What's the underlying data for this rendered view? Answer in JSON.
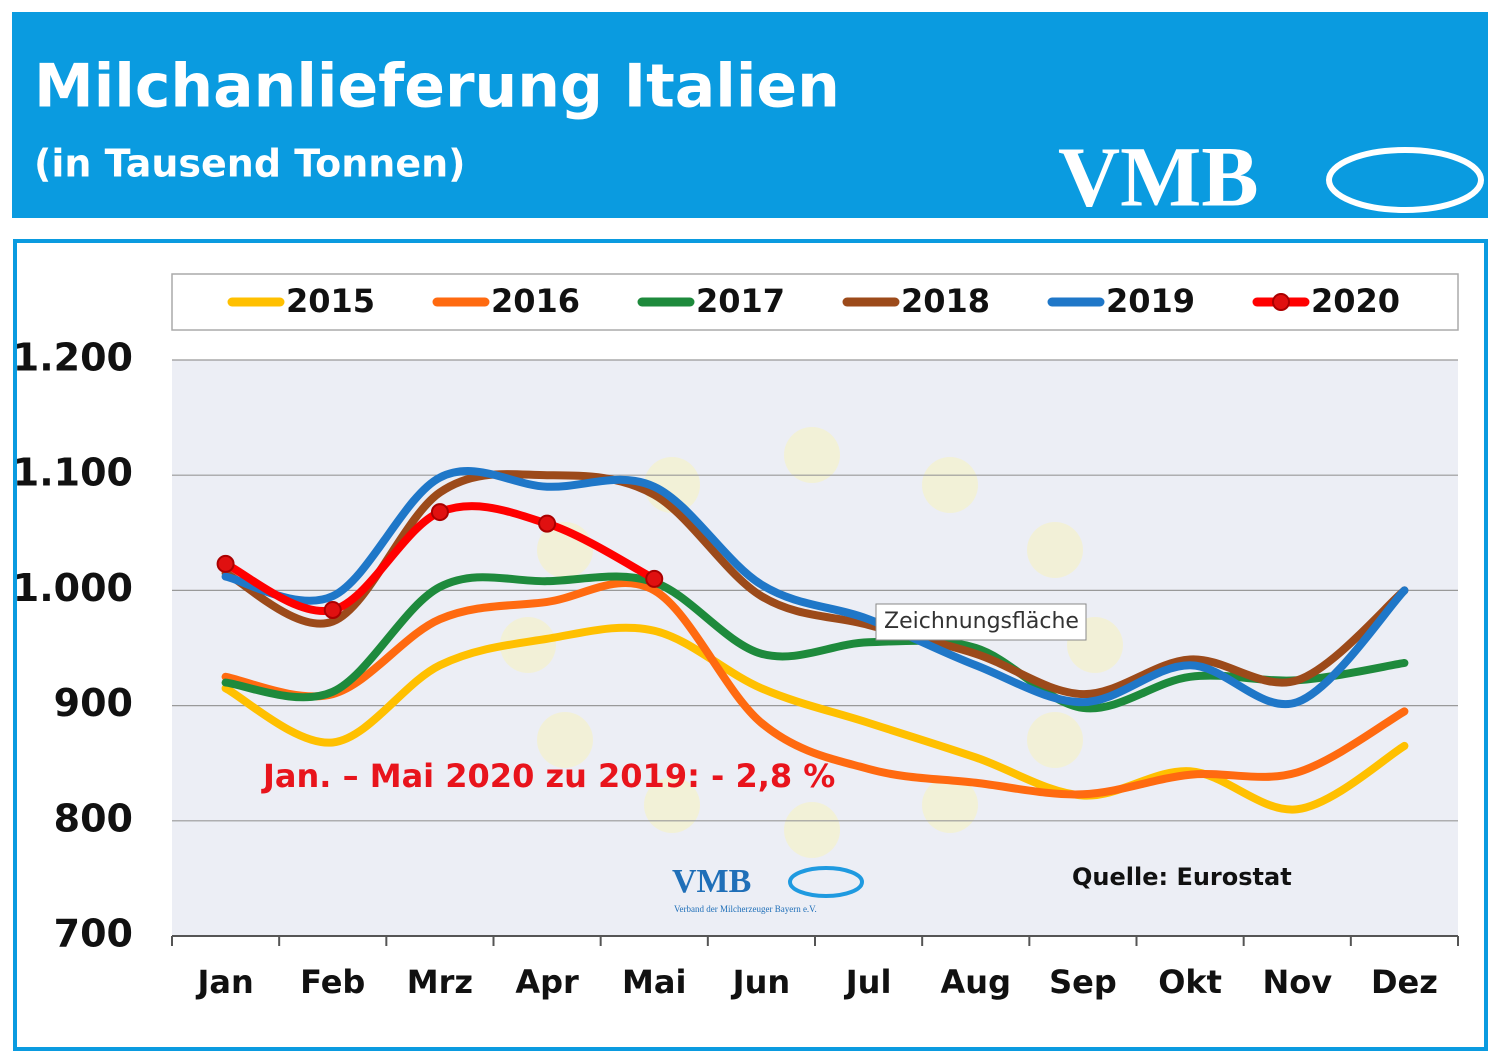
{
  "chart_data": {
    "type": "line",
    "title": "Milchanlieferung Italien",
    "subtitle": "(in Tausend Tonnen)",
    "logo": "VMB",
    "watermark": {
      "text": "VMB",
      "subtext": "Verband der Milcherzeuger Bayern e.V."
    },
    "annotation": "Jan. – Mai 2020 zu 2019: - 2,8 %",
    "source": "Quelle: Eurostat",
    "tooltip": "Zeichnungsfläche",
    "categories": [
      "Jan",
      "Feb",
      "Mrz",
      "Apr",
      "Mai",
      "Jun",
      "Jul",
      "Aug",
      "Sep",
      "Okt",
      "Nov",
      "Dez"
    ],
    "series": [
      {
        "name": "2015",
        "color": "#ffc000",
        "values": [
          915,
          868,
          935,
          958,
          965,
          915,
          885,
          855,
          822,
          843,
          810,
          865
        ]
      },
      {
        "name": "2016",
        "color": "#ff6a10",
        "values": [
          925,
          910,
          975,
          990,
          1000,
          885,
          845,
          833,
          823,
          840,
          842,
          895
        ]
      },
      {
        "name": "2017",
        "color": "#1e8a3c",
        "values": [
          920,
          912,
          1003,
          1008,
          1007,
          945,
          955,
          950,
          898,
          925,
          922,
          937
        ]
      },
      {
        "name": "2018",
        "color": "#9c4a1a",
        "values": [
          1015,
          973,
          1085,
          1100,
          1083,
          995,
          970,
          945,
          910,
          940,
          922,
          1000
        ]
      },
      {
        "name": "2019",
        "color": "#1f77c8",
        "values": [
          1012,
          995,
          1098,
          1090,
          1090,
          1005,
          975,
          935,
          903,
          935,
          903,
          1000
        ]
      },
      {
        "name": "2020",
        "color": "#ff0000",
        "marker": true,
        "values": [
          1023,
          983,
          1068,
          1058,
          1010,
          null,
          null,
          null,
          null,
          null,
          null,
          null
        ]
      }
    ],
    "ylim": [
      700,
      1200
    ],
    "yticks": [
      700,
      800,
      900,
      {
        "value": 1000,
        "label": "1.000"
      },
      {
        "value": 1100,
        "label": "1.100"
      },
      {
        "value": 1200,
        "label": "1.200"
      }
    ],
    "grid": true,
    "legend": "top"
  }
}
